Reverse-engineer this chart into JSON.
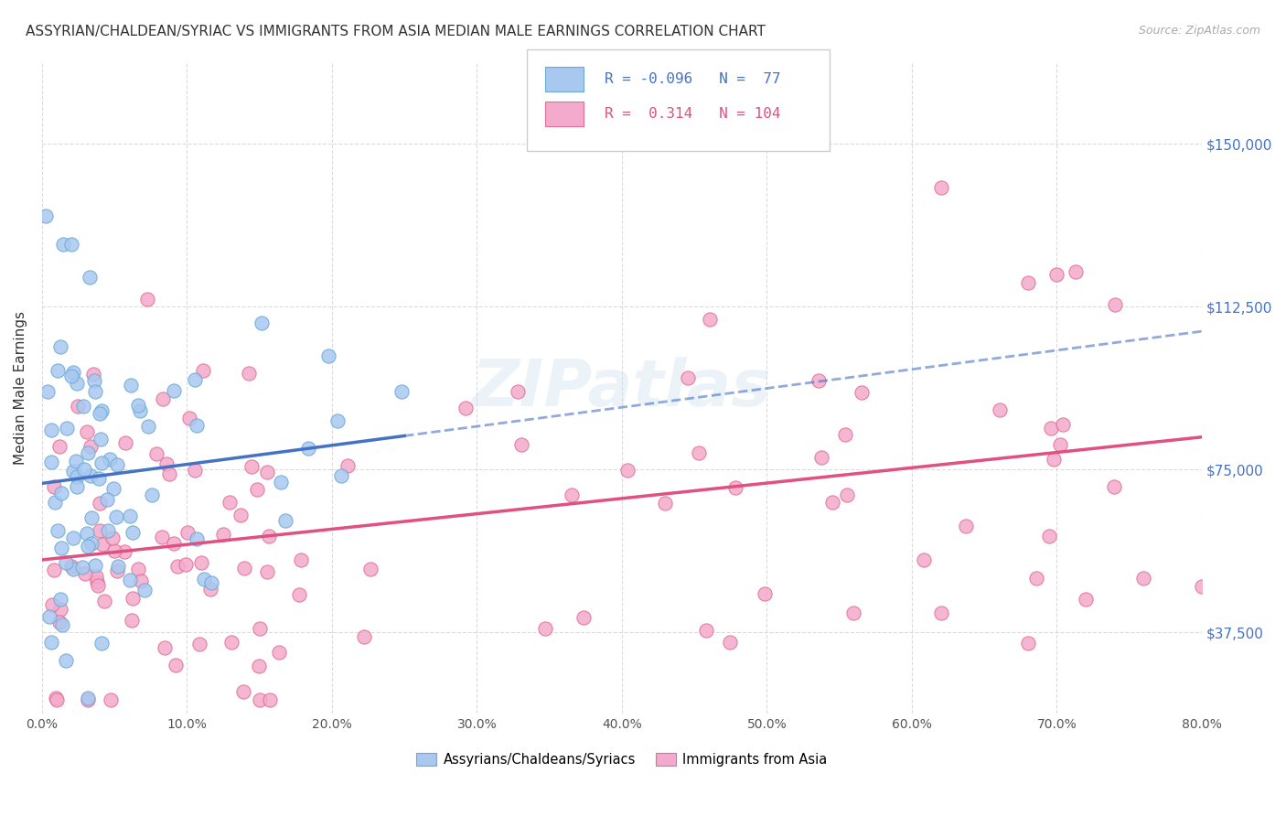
{
  "title": "ASSYRIAN/CHALDEAN/SYRIAC VS IMMIGRANTS FROM ASIA MEDIAN MALE EARNINGS CORRELATION CHART",
  "source": "Source: ZipAtlas.com",
  "ylabel": "Median Male Earnings",
  "xlabel_ticks": [
    "0.0%",
    "10.0%",
    "20.0%",
    "30.0%",
    "40.0%",
    "50.0%",
    "60.0%",
    "70.0%",
    "80.0%"
  ],
  "ytick_labels": [
    "$37,500",
    "$75,000",
    "$112,500",
    "$150,000"
  ],
  "ytick_values": [
    37500,
    75000,
    112500,
    150000
  ],
  "xlim": [
    0.0,
    0.8
  ],
  "ylim": [
    18750,
    168750
  ],
  "blue_R": -0.096,
  "blue_N": 77,
  "pink_R": 0.314,
  "pink_N": 104,
  "blue_color": "#a8c8f0",
  "blue_edge": "#6aaad4",
  "blue_line_color": "#4472c4",
  "pink_color": "#f4aacc",
  "pink_edge": "#e07090",
  "pink_line_color": "#e05080",
  "legend_label_blue": "Assyrians/Chaldeans/Syriacs",
  "legend_label_pink": "Immigrants from Asia",
  "watermark": "ZIPatlas",
  "title_fontsize": 11,
  "axis_label_fontsize": 10,
  "tick_fontsize": 10,
  "right_tick_color": "#4472c4"
}
